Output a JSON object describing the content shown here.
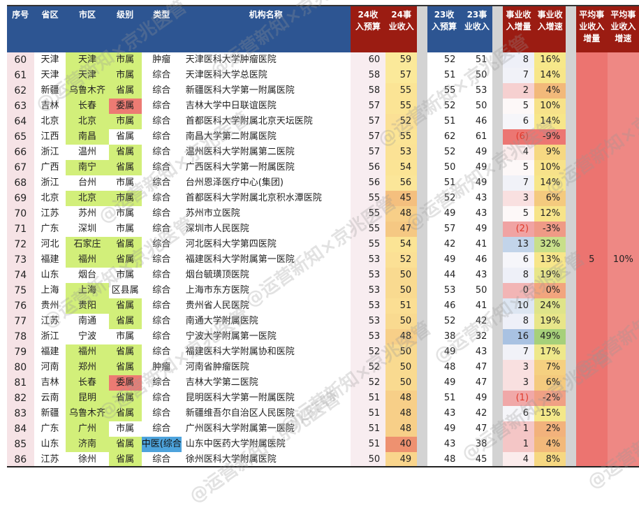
{
  "headers": {
    "seq": "序号",
    "province": "省区",
    "city": "市区",
    "level": "级别",
    "type": "类型",
    "name": "机构名称",
    "budget24": [
      "24收",
      "入预算"
    ],
    "revenue24": [
      "24事",
      "业收入"
    ],
    "budget23": [
      "23收",
      "入预算"
    ],
    "revenue23": [
      "23事",
      "业收入"
    ],
    "increase": [
      "事业收",
      "入增量"
    ],
    "growth": [
      "事业收",
      "入增速"
    ],
    "avg_increase": [
      "平均事",
      "业收入",
      "增量"
    ],
    "avg_growth": [
      "平均事",
      "业收入",
      "增速"
    ]
  },
  "averages": {
    "avg_increase": "5",
    "avg_growth": "10%"
  },
  "colors": {
    "header_blue": "#2d5592",
    "header_red": "#9b1c12",
    "highlight_green": "#d2ef7a",
    "highlight_red": "#ec7b73",
    "highlight_blue": "#4da3dc",
    "avg_red": "#ec7470"
  },
  "watermark": "@运营新知×京兆医管",
  "rows": [
    {
      "seq": "60",
      "province": "天津",
      "city": "天津",
      "level": "市属",
      "type": "肿瘤",
      "name": "天津医科大学肿瘤医院",
      "b24": "60",
      "r24": "59",
      "b23": "52",
      "r23": "51",
      "inc": "8",
      "gr": "16%",
      "cityHL": "green",
      "levelHL": "green",
      "r24c": "#fbe99a",
      "incc": "#eef0f8",
      "grc": "#f7e88a"
    },
    {
      "seq": "61",
      "province": "天津",
      "city": "天津",
      "level": "市属",
      "type": "综合",
      "name": "天津医科大学总医院",
      "b24": "58",
      "r24": "57",
      "b23": "51",
      "r23": "50",
      "inc": "7",
      "gr": "14%",
      "cityHL": "green",
      "levelHL": "green",
      "r24c": "#fbe99a",
      "incc": "#f1f2f8",
      "grc": "#f7e68a"
    },
    {
      "seq": "62",
      "province": "新疆",
      "city": "乌鲁木齐",
      "level": "省属",
      "type": "综合",
      "name": "新疆医科大学第一附属医院",
      "b24": "58",
      "r24": "55",
      "b23": "55",
      "r23": "53",
      "inc": "2",
      "gr": "4%",
      "cityHL": "green",
      "levelHL": "green",
      "r24c": "#fbe495",
      "incc": "#f6d0d0",
      "grc": "#f2b97a"
    },
    {
      "seq": "63",
      "province": "吉林",
      "city": "长春",
      "level": "委属",
      "type": "综合",
      "name": "吉林大学中日联谊医院",
      "b24": "57",
      "r24": "55",
      "b23": "52",
      "r23": "50",
      "inc": "5",
      "gr": "10%",
      "cityHL": "green",
      "levelHL": "red",
      "r24c": "#fbe495",
      "incc": "#fdf8f8",
      "grc": "#f7e28a"
    },
    {
      "seq": "64",
      "province": "北京",
      "city": "北京",
      "level": "市属",
      "type": "综合",
      "name": "首都医科大学附属北京天坛医院",
      "b24": "57",
      "r24": "52",
      "b23": "51",
      "r23": "46",
      "inc": "6",
      "gr": "14%",
      "cityHL": "green",
      "levelHL": "green",
      "r24c": "#fbe095",
      "incc": "#f6f6fa",
      "grc": "#f7e68a"
    },
    {
      "seq": "65",
      "province": "江西",
      "city": "南昌",
      "level": "省属",
      "type": "综合",
      "name": "南昌大学第二附属医院",
      "b24": "57",
      "r24": "55",
      "b23": "62",
      "r23": "61",
      "inc": "(6)",
      "gr": "-9%",
      "cityHL": "green",
      "levelHL": "",
      "r24c": "#fbe495",
      "incc": "#ec7672",
      "grc": "#ec7672",
      "neg": true
    },
    {
      "seq": "66",
      "province": "浙江",
      "city": "温州",
      "level": "省属",
      "type": "综合",
      "name": "温州医科大学附属第二医院",
      "b24": "57",
      "r24": "53",
      "b23": "52",
      "r23": "49",
      "inc": "4",
      "gr": "9%",
      "cityHL": "",
      "levelHL": "green",
      "r24c": "#fbe295",
      "incc": "#fbecec",
      "grc": "#f6d882"
    },
    {
      "seq": "67",
      "province": "广西",
      "city": "南宁",
      "level": "省属",
      "type": "综合",
      "name": "广西医科大学第一附属医院",
      "b24": "56",
      "r24": "54",
      "b23": "50",
      "r23": "49",
      "inc": "5",
      "gr": "10%",
      "cityHL": "green",
      "levelHL": "green",
      "r24c": "#fbe495",
      "incc": "#fdf8f8",
      "grc": "#f7e28a"
    },
    {
      "seq": "68",
      "province": "浙江",
      "city": "台州",
      "level": "市属",
      "type": "综合",
      "name": "台州恩泽医疗中心(集团)",
      "b24": "56",
      "r24": "56",
      "b23": "51",
      "r23": "49",
      "inc": "7",
      "gr": "14%",
      "cityHL": "",
      "levelHL": "",
      "r24c": "#fbe699",
      "incc": "#f1f2f8",
      "grc": "#f7e68a"
    },
    {
      "seq": "69",
      "province": "北京",
      "city": "北京",
      "level": "市属",
      "type": "综合",
      "name": "首都医科大学附属北京积水潭医院",
      "b24": "55",
      "r24": "45",
      "b23": "52",
      "r23": "43",
      "inc": "3",
      "gr": "6%",
      "cityHL": "green",
      "levelHL": "green",
      "r24c": "#f4bf7e",
      "incc": "#f9e0e0",
      "grc": "#f4ca7e"
    },
    {
      "seq": "70",
      "province": "江苏",
      "city": "苏州",
      "level": "市属",
      "type": "综合",
      "name": "苏州市立医院",
      "b24": "55",
      "r24": "48",
      "b23": "49",
      "r23": "43",
      "inc": "5",
      "gr": "12%",
      "cityHL": "",
      "levelHL": "",
      "r24c": "#f7cf88",
      "incc": "#fdf8f8",
      "grc": "#f7e48a"
    },
    {
      "seq": "71",
      "province": "广东",
      "city": "深圳",
      "level": "市属",
      "type": "综合",
      "name": "深圳市人民医院",
      "b24": "55",
      "r24": "47",
      "b23": "57",
      "r23": "49",
      "inc": "(2)",
      "gr": "-3%",
      "cityHL": "",
      "levelHL": "",
      "r24c": "#f5c883",
      "incc": "#f0a3a3",
      "grc": "#ef9a86",
      "neg": true
    },
    {
      "seq": "72",
      "province": "河北",
      "city": "石家庄",
      "level": "省属",
      "type": "综合",
      "name": "河北医科大学第四医院",
      "b24": "55",
      "r24": "54",
      "b23": "42",
      "r23": "41",
      "inc": "13",
      "gr": "32%",
      "cityHL": "green",
      "levelHL": "green",
      "r24c": "#fbe495",
      "incc": "#c2d4ea",
      "grc": "#c8df8a"
    },
    {
      "seq": "73",
      "province": "福建",
      "city": "福州",
      "level": "省属",
      "type": "综合",
      "name": "福建医科大学附属第一医院",
      "b24": "53",
      "r24": "52",
      "b23": "49",
      "r23": "46",
      "inc": "6",
      "gr": "13%",
      "cityHL": "green",
      "levelHL": "green",
      "r24c": "#fbe095",
      "incc": "#f6f6fa",
      "grc": "#f7e68a"
    },
    {
      "seq": "74",
      "province": "山东",
      "city": "烟台",
      "level": "市属",
      "type": "综合",
      "name": "烟台毓璜顶医院",
      "b24": "53",
      "r24": "50",
      "b23": "44",
      "r23": "43",
      "inc": "8",
      "gr": "19%",
      "cityHL": "",
      "levelHL": "",
      "r24c": "#f9da90",
      "incc": "#eef0f8",
      "grc": "#e8e68a"
    },
    {
      "seq": "75",
      "province": "上海",
      "city": "上海",
      "level": "区县属",
      "type": "综合",
      "name": "上海市东方医院",
      "b24": "53",
      "r24": "50",
      "b23": "53",
      "r23": "50",
      "inc": "0",
      "gr": "0%",
      "cityHL": "green",
      "levelHL": "",
      "r24c": "#f9da90",
      "incc": "#f2b5b5",
      "grc": "#f2a57e"
    },
    {
      "seq": "76",
      "province": "贵州",
      "city": "贵阳",
      "level": "省属",
      "type": "综合",
      "name": "贵州省人民医院",
      "b24": "53",
      "r24": "51",
      "b23": "46",
      "r23": "41",
      "inc": "10",
      "gr": "24%",
      "cityHL": "green",
      "levelHL": "green",
      "r24c": "#fbde93",
      "incc": "#dde6f2",
      "grc": "#dfe48a"
    },
    {
      "seq": "77",
      "province": "江苏",
      "city": "南通",
      "level": "省属",
      "type": "综合",
      "name": "南通大学附属医院",
      "b24": "53",
      "r24": "50",
      "b23": "52",
      "r23": "42",
      "inc": "8",
      "gr": "19%",
      "cityHL": "",
      "levelHL": "green",
      "r24c": "#f9da90",
      "incc": "#eef0f8",
      "grc": "#e8e68a"
    },
    {
      "seq": "78",
      "province": "浙江",
      "city": "宁波",
      "level": "市属",
      "type": "综合",
      "name": "宁波大学附属第一医院",
      "b24": "53",
      "r24": "48",
      "b23": "38",
      "r23": "32",
      "inc": "16",
      "gr": "49%",
      "cityHL": "",
      "levelHL": "",
      "r24c": "#f7cf88",
      "incc": "#a9c2e2",
      "grc": "#a6d07a"
    },
    {
      "seq": "79",
      "province": "福建",
      "city": "福州",
      "level": "省属",
      "type": "综合",
      "name": "福建医科大学附属协和医院",
      "b24": "52",
      "r24": "50",
      "b23": "49",
      "r23": "43",
      "inc": "7",
      "gr": "17%",
      "cityHL": "green",
      "levelHL": "green",
      "r24c": "#f9da90",
      "incc": "#f1f2f8",
      "grc": "#eee88a"
    },
    {
      "seq": "80",
      "province": "河南",
      "city": "郑州",
      "level": "省属",
      "type": "肿瘤",
      "name": "河南省肿瘤医院",
      "b24": "52",
      "r24": "50",
      "b23": "48",
      "r23": "47",
      "inc": "3",
      "gr": "7%",
      "cityHL": "green",
      "levelHL": "green",
      "r24c": "#f9da90",
      "incc": "#f9e0e0",
      "grc": "#f5d080"
    },
    {
      "seq": "81",
      "province": "吉林",
      "city": "长春",
      "level": "委属",
      "type": "综合",
      "name": "吉林大学第二医院",
      "b24": "52",
      "r24": "50",
      "b23": "49",
      "r23": "47",
      "inc": "3",
      "gr": "6%",
      "cityHL": "green",
      "levelHL": "red",
      "r24c": "#f9da90",
      "incc": "#f9e0e0",
      "grc": "#f4ca7e"
    },
    {
      "seq": "82",
      "province": "云南",
      "city": "昆明",
      "level": "省属",
      "type": "综合",
      "name": "昆明医科大学第一附属医院",
      "b24": "51",
      "r24": "48",
      "b23": "51",
      "r23": "49",
      "inc": "(1)",
      "gr": "-2%",
      "cityHL": "green",
      "levelHL": "green",
      "r24c": "#f7cf88",
      "incc": "#f0a8a8",
      "grc": "#f0a084",
      "neg": true
    },
    {
      "seq": "83",
      "province": "新疆",
      "city": "乌鲁木齐",
      "level": "省属",
      "type": "综合",
      "name": "新疆维吾尔自治区人民医院",
      "b24": "51",
      "r24": "48",
      "b23": "43",
      "r23": "42",
      "inc": "6",
      "gr": "15%",
      "cityHL": "green",
      "levelHL": "green",
      "r24c": "#f7cf88",
      "incc": "#f6f6fa",
      "grc": "#f4e88a"
    },
    {
      "seq": "84",
      "province": "广东",
      "city": "广州",
      "level": "市属",
      "type": "综合",
      "name": "广州医科大学附属第一医院",
      "b24": "51",
      "r24": "48",
      "b23": "49",
      "r23": "47",
      "inc": "1",
      "gr": "2%",
      "cityHL": "green",
      "levelHL": "",
      "r24c": "#f7cf88",
      "incc": "#f4c6c6",
      "grc": "#f2b27c"
    },
    {
      "seq": "85",
      "province": "山东",
      "city": "济南",
      "level": "省属",
      "type": "中医(综合",
      "name": "山东中医药大学附属医院",
      "b24": "51",
      "r24": "40",
      "b23": "43",
      "r23": "38",
      "inc": "1",
      "gr": "4%",
      "cityHL": "green",
      "levelHL": "green",
      "typeHL": "blue",
      "r24c": "#ee9170",
      "incc": "#f4c6c6",
      "grc": "#f2b97a"
    },
    {
      "seq": "86",
      "province": "江苏",
      "city": "徐州",
      "level": "省属",
      "type": "综合",
      "name": "徐州医科大学附属医院",
      "b24": "50",
      "r24": "49",
      "b23": "48",
      "r23": "45",
      "inc": "4",
      "gr": "8%",
      "cityHL": "",
      "levelHL": "green",
      "r24c": "#f9d58c",
      "incc": "#fbecec",
      "grc": "#f6d882"
    }
  ]
}
